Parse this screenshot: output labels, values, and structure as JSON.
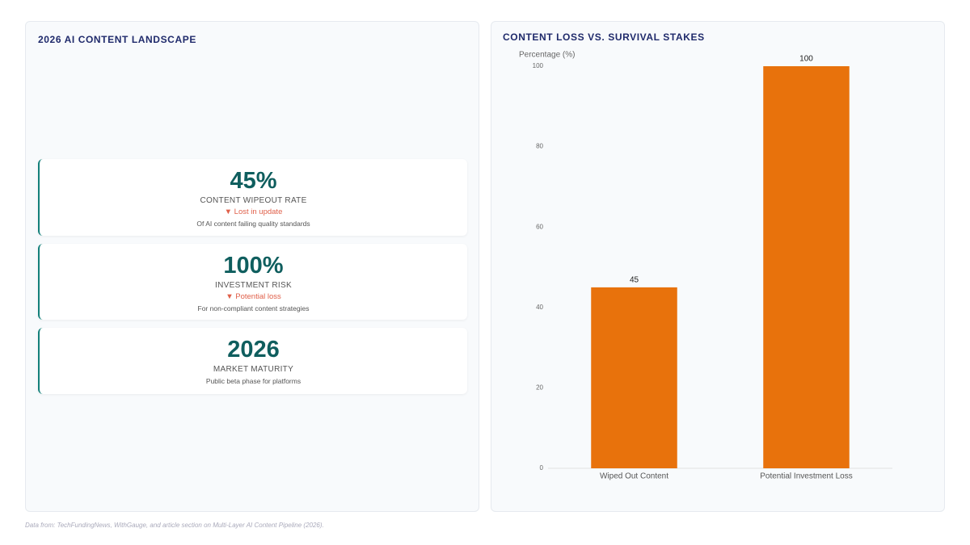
{
  "left": {
    "title": "2026 AI CONTENT LANDSCAPE",
    "cards": [
      {
        "value": "45%",
        "label": "CONTENT WIPEOUT RATE",
        "delta": "▼ Lost in update",
        "note": "Of AI content failing quality standards"
      },
      {
        "value": "100%",
        "label": "INVESTMENT RISK",
        "delta": "▼ Potential loss",
        "note": "For non-compliant content strategies"
      },
      {
        "value": "2026",
        "label": "MARKET MATURITY",
        "note": "Public beta phase for platforms"
      }
    ]
  },
  "chart_data": {
    "type": "bar",
    "title": "CONTENT LOSS VS. SURVIVAL STAKES",
    "y_label": "Percentage (%)",
    "categories": [
      "Wiped Out Content",
      "Potential Investment Loss"
    ],
    "values": [
      45,
      100
    ],
    "color": "#e8720c",
    "ylim": [
      0,
      100
    ],
    "yticks": [
      0,
      20,
      40,
      60,
      80,
      100
    ],
    "grid": false
  },
  "source": "Data from: TechFundingNews, WithGauge, and article section on Multi-Layer AI Content Pipeline (2026)."
}
